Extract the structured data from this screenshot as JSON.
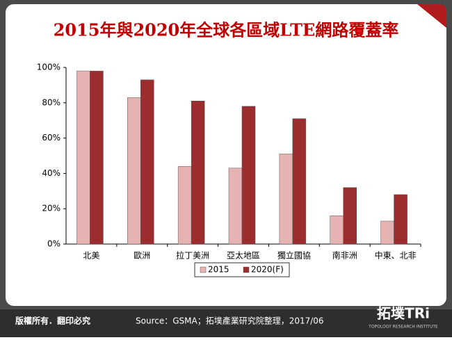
{
  "chart_data": {
    "type": "bar",
    "title": "2015年與2020年全球各區域LTE網路覆蓋率",
    "categories": [
      "北美",
      "歐洲",
      "拉丁美洲",
      "亞太地區",
      "獨立國協",
      "南非洲",
      "中東、北非"
    ],
    "series": [
      {
        "name": "2015",
        "color": "#e6b3b3",
        "values": [
          98,
          83,
          44,
          43,
          51,
          16,
          13
        ]
      },
      {
        "name": "2020(F)",
        "color": "#9b2d2f",
        "values": [
          98,
          93,
          81,
          78,
          71,
          32,
          28
        ]
      }
    ],
    "ylim": [
      0,
      100
    ],
    "yticks": [
      {
        "value": 0,
        "label": "0%"
      },
      {
        "value": 20,
        "label": "20%"
      },
      {
        "value": 40,
        "label": "40%"
      },
      {
        "value": 60,
        "label": "60%"
      },
      {
        "value": 80,
        "label": "80%"
      },
      {
        "value": 100,
        "label": "100%"
      }
    ],
    "grid": false,
    "legend": "bottom"
  },
  "footer": {
    "copyright": "版權所有．翻印必究",
    "source": "Source：GSMA；拓墣產業研究院整理，2017/06",
    "logo": "拓墣TRi",
    "logo_sub": "TOPOLOGY RESEARCH INSTITUTE"
  }
}
